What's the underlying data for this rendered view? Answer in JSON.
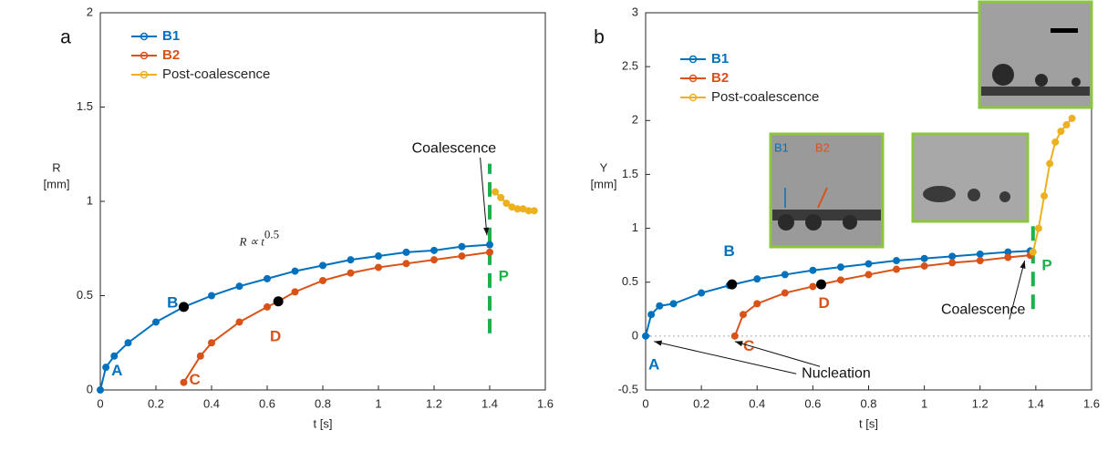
{
  "chart_data": [
    {
      "type": "line",
      "panel_label": "a",
      "xlabel": "t [s]",
      "ylabel": [
        "R",
        "[mm]"
      ],
      "xlim": [
        0,
        1.6
      ],
      "ylim": [
        0,
        2
      ],
      "xticks": [
        0,
        0.2,
        0.4,
        0.6,
        0.8,
        1,
        1.2,
        1.4,
        1.6
      ],
      "yticks": [
        0,
        0.5,
        1,
        1.5,
        2
      ],
      "legend": "upper left",
      "series": [
        {
          "name": "B1",
          "color": "#0072BD",
          "x": [
            0,
            0.02,
            0.05,
            0.1,
            0.2,
            0.3,
            0.4,
            0.5,
            0.6,
            0.7,
            0.8,
            0.9,
            1.0,
            1.1,
            1.2,
            1.3,
            1.4
          ],
          "values": [
            0,
            0.12,
            0.18,
            0.25,
            0.36,
            0.44,
            0.5,
            0.55,
            0.59,
            0.63,
            0.66,
            0.69,
            0.71,
            0.73,
            0.74,
            0.76,
            0.77
          ]
        },
        {
          "name": "B2",
          "color": "#D95319",
          "x": [
            0.3,
            0.36,
            0.4,
            0.5,
            0.6,
            0.64,
            0.7,
            0.8,
            0.9,
            1.0,
            1.1,
            1.2,
            1.3,
            1.4
          ],
          "values": [
            0.04,
            0.18,
            0.25,
            0.36,
            0.44,
            0.47,
            0.52,
            0.58,
            0.62,
            0.65,
            0.67,
            0.69,
            0.71,
            0.73
          ]
        },
        {
          "name": "Post-coalescence",
          "color": "#EDB120",
          "x": [
            1.42,
            1.44,
            1.46,
            1.48,
            1.5,
            1.52,
            1.54,
            1.56
          ],
          "values": [
            1.05,
            1.02,
            0.99,
            0.97,
            0.96,
            0.96,
            0.95,
            0.95
          ]
        }
      ],
      "highlight_points": {
        "x": [
          0.3,
          0.64
        ],
        "values": [
          0.44,
          0.47
        ]
      },
      "event_line": {
        "x": 1.4,
        "values": [
          0.3,
          1.2
        ],
        "color": "#1DB04B"
      },
      "annotations": [
        {
          "text": "A",
          "x": 0.06,
          "y": 0.1,
          "color": "#0072BD"
        },
        {
          "text": "B",
          "x": 0.26,
          "y": 0.46,
          "color": "#0072BD"
        },
        {
          "text": "C",
          "x": 0.34,
          "y": 0.05,
          "color": "#D95319"
        },
        {
          "text": "D",
          "x": 0.63,
          "y": 0.28,
          "color": "#D95319"
        },
        {
          "text": "P",
          "x": 1.45,
          "y": 0.6,
          "color": "#1DB04B"
        },
        {
          "text": "Coalescence",
          "x": 1.12,
          "y": 1.28,
          "color": "#111111",
          "arrow": [
            1.39,
            0.82
          ]
        }
      ],
      "formula": {
        "text": "R ∝ t",
        "superscript": "0.5",
        "x": 0.5,
        "y": 0.78
      }
    },
    {
      "type": "line",
      "panel_label": "b",
      "xlabel": "t [s]",
      "ylabel": [
        "Y",
        "[mm]"
      ],
      "xlim": [
        0,
        1.6
      ],
      "ylim": [
        -0.5,
        3
      ],
      "xticks": [
        0,
        0.2,
        0.4,
        0.6,
        0.8,
        1,
        1.2,
        1.4,
        1.6
      ],
      "yticks": [
        -0.5,
        0,
        0.5,
        1,
        1.5,
        2,
        2.5,
        3
      ],
      "legend": "upper left",
      "zero_line": true,
      "series": [
        {
          "name": "B1",
          "color": "#0072BD",
          "x": [
            0,
            0.02,
            0.05,
            0.1,
            0.2,
            0.3,
            0.4,
            0.5,
            0.6,
            0.7,
            0.8,
            0.9,
            1.0,
            1.1,
            1.2,
            1.3,
            1.38
          ],
          "values": [
            0,
            0.2,
            0.28,
            0.3,
            0.4,
            0.47,
            0.53,
            0.57,
            0.61,
            0.64,
            0.67,
            0.7,
            0.72,
            0.74,
            0.76,
            0.78,
            0.79
          ]
        },
        {
          "name": "B2",
          "color": "#D95319",
          "x": [
            0.32,
            0.35,
            0.4,
            0.5,
            0.6,
            0.63,
            0.7,
            0.8,
            0.9,
            1.0,
            1.1,
            1.2,
            1.3,
            1.38
          ],
          "values": [
            0,
            0.2,
            0.3,
            0.4,
            0.46,
            0.48,
            0.52,
            0.57,
            0.62,
            0.65,
            0.68,
            0.7,
            0.73,
            0.75
          ]
        },
        {
          "name": "Post-coalescence",
          "color": "#EDB120",
          "x": [
            1.39,
            1.41,
            1.43,
            1.45,
            1.47,
            1.49,
            1.51,
            1.53
          ],
          "values": [
            0.78,
            1.0,
            1.3,
            1.6,
            1.8,
            1.9,
            1.96,
            2.02
          ]
        }
      ],
      "highlight_points": {
        "x": [
          0.31,
          0.63
        ],
        "values": [
          0.48,
          0.48
        ]
      },
      "event_line": {
        "x": 1.39,
        "values": [
          0.25,
          1.05
        ],
        "color": "#1DB04B"
      },
      "annotations": [
        {
          "text": "A",
          "x": 0.03,
          "y": -0.27,
          "color": "#0072BD"
        },
        {
          "text": "B",
          "x": 0.3,
          "y": 0.78,
          "color": "#0072BD"
        },
        {
          "text": "C",
          "x": 0.37,
          "y": -0.1,
          "color": "#D95319"
        },
        {
          "text": "D",
          "x": 0.64,
          "y": 0.3,
          "color": "#D95319"
        },
        {
          "text": "P",
          "x": 1.44,
          "y": 0.65,
          "color": "#1DB04B"
        },
        {
          "text": "Coalescence",
          "x": 1.06,
          "y": 0.24,
          "color": "#111111",
          "arrow": [
            1.36,
            0.7
          ]
        },
        {
          "text": "Nucleation",
          "x": 0.56,
          "y": -0.35,
          "color": "#111111",
          "arrow": [
            0.03,
            -0.05
          ],
          "arrow2": [
            0.32,
            -0.05
          ]
        }
      ],
      "inset_labels": [
        {
          "text": "B1",
          "color": "#0072BD"
        },
        {
          "text": "B2",
          "color": "#D95319"
        }
      ]
    }
  ]
}
